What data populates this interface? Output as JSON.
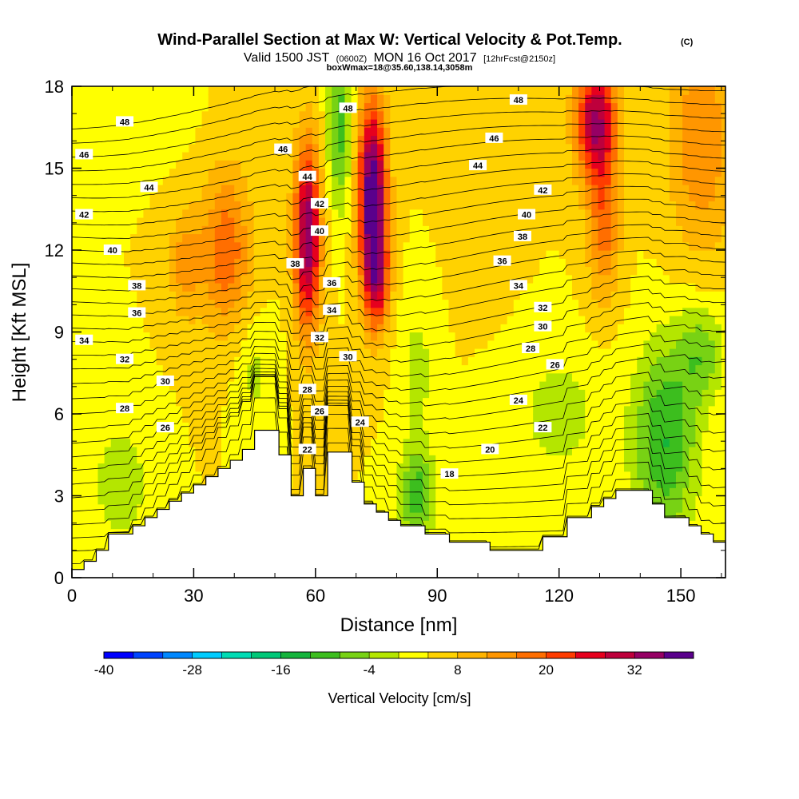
{
  "chart_data": {
    "type": "heatmap",
    "title": "Wind-Parallel Section at Max W: Vertical Velocity & Pot.Temp.",
    "title_mark": "(C)",
    "subtitle": {
      "valid": "Valid 1500 JST",
      "utc": "(0600Z)",
      "date": "MON 16 Oct 2017",
      "fcst": "[12hrFcst@2150z]",
      "box": "boxWmax=18@35.60,138.14,3058m"
    },
    "xlabel": "Distance [nm]",
    "ylabel": "Height [Kft MSL]",
    "xlim": [
      0,
      161
    ],
    "ylim": [
      0,
      18
    ],
    "x_ticks": [
      0,
      30,
      60,
      90,
      120,
      150
    ],
    "y_ticks": [
      0,
      3,
      6,
      9,
      12,
      15,
      18
    ],
    "x_tick_labels": [
      "0",
      "30",
      "60",
      "90",
      "120",
      "150"
    ],
    "y_tick_labels": [
      "0",
      "3",
      "6",
      "9",
      "12",
      "15",
      "18"
    ],
    "colorbar": {
      "title": "Vertical Velocity [cm/s]",
      "min": -40,
      "max": 40,
      "step": 4,
      "labels": [
        "-40",
        "-28",
        "-16",
        "-4",
        "8",
        "20",
        "32"
      ],
      "label_values": [
        -40,
        -28,
        -16,
        -4,
        8,
        20,
        32
      ],
      "colors": [
        "#0000ff",
        "#0044ff",
        "#0088ff",
        "#00ccff",
        "#00dcb4",
        "#00c878",
        "#14b43c",
        "#3cbe1e",
        "#78d214",
        "#b4e600",
        "#ffff00",
        "#ffd200",
        "#ffb400",
        "#ff9600",
        "#ff6e00",
        "#ff3c00",
        "#e6001e",
        "#be003c",
        "#960064",
        "#5a008c"
      ]
    },
    "terrain": [
      [
        0,
        0.3
      ],
      [
        3,
        0.3
      ],
      [
        3,
        0.6
      ],
      [
        6,
        0.6
      ],
      [
        6,
        1.0
      ],
      [
        9,
        1.0
      ],
      [
        9,
        1.6
      ],
      [
        15,
        1.6
      ],
      [
        15,
        1.9
      ],
      [
        18,
        1.9
      ],
      [
        18,
        2.2
      ],
      [
        21,
        2.2
      ],
      [
        21,
        2.5
      ],
      [
        24,
        2.5
      ],
      [
        24,
        2.8
      ],
      [
        27,
        2.8
      ],
      [
        27,
        3.1
      ],
      [
        30,
        3.1
      ],
      [
        30,
        3.4
      ],
      [
        33,
        3.4
      ],
      [
        33,
        3.7
      ],
      [
        36,
        3.7
      ],
      [
        36,
        4.0
      ],
      [
        39,
        4.0
      ],
      [
        39,
        4.3
      ],
      [
        42,
        4.3
      ],
      [
        42,
        4.7
      ],
      [
        45,
        4.7
      ],
      [
        45,
        5.4
      ],
      [
        51,
        5.4
      ],
      [
        51,
        4.5
      ],
      [
        54,
        4.5
      ],
      [
        54,
        3.0
      ],
      [
        57,
        3.0
      ],
      [
        57,
        4.0
      ],
      [
        60,
        4.0
      ],
      [
        60,
        3.0
      ],
      [
        63,
        3.0
      ],
      [
        63,
        4.6
      ],
      [
        69,
        4.6
      ],
      [
        69,
        3.5
      ],
      [
        72,
        3.5
      ],
      [
        72,
        2.7
      ],
      [
        75,
        2.7
      ],
      [
        75,
        2.4
      ],
      [
        78,
        2.4
      ],
      [
        78,
        2.1
      ],
      [
        81,
        2.1
      ],
      [
        81,
        1.9
      ],
      [
        87,
        1.9
      ],
      [
        87,
        1.6
      ],
      [
        93,
        1.6
      ],
      [
        93,
        1.3
      ],
      [
        103,
        1.3
      ],
      [
        103,
        1.0
      ],
      [
        116,
        1.0
      ],
      [
        116,
        1.5
      ],
      [
        122,
        1.5
      ],
      [
        122,
        2.2
      ],
      [
        128,
        2.2
      ],
      [
        128,
        2.6
      ],
      [
        131,
        2.6
      ],
      [
        131,
        2.9
      ],
      [
        134,
        2.9
      ],
      [
        134,
        3.2
      ],
      [
        143,
        3.2
      ],
      [
        143,
        2.7
      ],
      [
        146,
        2.7
      ],
      [
        146,
        2.2
      ],
      [
        152,
        2.2
      ],
      [
        152,
        1.9
      ],
      [
        155,
        1.9
      ],
      [
        155,
        1.6
      ],
      [
        158,
        1.6
      ],
      [
        158,
        1.3
      ],
      [
        161,
        1.3
      ]
    ],
    "velocity_field": {
      "background": 4,
      "features": [
        {
          "x": 58,
          "y": 12.5,
          "sx": 3.2,
          "sy": 3.4,
          "amp": 32
        },
        {
          "x": 74,
          "y": 14.2,
          "sx": 3.5,
          "sy": 3.2,
          "amp": 37
        },
        {
          "x": 75,
          "y": 11.0,
          "sx": 3.0,
          "sy": 2.0,
          "amp": 22
        },
        {
          "x": 129,
          "y": 16.8,
          "sx": 5.0,
          "sy": 2.2,
          "amp": 28
        },
        {
          "x": 131,
          "y": 13.0,
          "sx": 4.0,
          "sy": 2.8,
          "amp": 14
        },
        {
          "x": 38,
          "y": 12.0,
          "sx": 6.0,
          "sy": 3.0,
          "amp": 15
        },
        {
          "x": 28,
          "y": 11.5,
          "sx": 4.0,
          "sy": 2.0,
          "amp": 10
        },
        {
          "x": 155,
          "y": 16.0,
          "sx": 8.0,
          "sy": 4.0,
          "amp": 12
        },
        {
          "x": 102,
          "y": 14.5,
          "sx": 7.0,
          "sy": 3.0,
          "amp": 4
        },
        {
          "x": 66,
          "y": 16.5,
          "sx": 3.0,
          "sy": 3.0,
          "amp": -14
        },
        {
          "x": 85,
          "y": 3.0,
          "sx": 4.5,
          "sy": 1.8,
          "amp": -14
        },
        {
          "x": 146,
          "y": 5.0,
          "sx": 8.0,
          "sy": 3.5,
          "amp": -16
        },
        {
          "x": 155,
          "y": 8.2,
          "sx": 6.0,
          "sy": 1.8,
          "amp": -10
        },
        {
          "x": 12,
          "y": 3.5,
          "sx": 7.0,
          "sy": 2.2,
          "amp": -7
        },
        {
          "x": 85,
          "y": 7.5,
          "sx": 4.0,
          "sy": 2.5,
          "amp": -6
        },
        {
          "x": 120,
          "y": 6.0,
          "sx": 10.0,
          "sy": 2.5,
          "amp": -6
        },
        {
          "x": 45,
          "y": 7.5,
          "sx": 5.0,
          "sy": 2.0,
          "amp": -5
        },
        {
          "x": 20,
          "y": 17.0,
          "sx": 10.0,
          "sy": 1.5,
          "amp": -2
        }
      ]
    },
    "isentrope_count": 33,
    "isentrope_labels": [
      {
        "x": 13,
        "y": 16.7,
        "text": "48"
      },
      {
        "x": 68,
        "y": 17.2,
        "text": "48"
      },
      {
        "x": 110,
        "y": 17.5,
        "text": "48"
      },
      {
        "x": 3,
        "y": 15.5,
        "text": "46"
      },
      {
        "x": 52,
        "y": 15.7,
        "text": "46"
      },
      {
        "x": 104,
        "y": 16.1,
        "text": "46"
      },
      {
        "x": 19,
        "y": 14.3,
        "text": "44"
      },
      {
        "x": 58,
        "y": 14.7,
        "text": "44"
      },
      {
        "x": 100,
        "y": 15.1,
        "text": "44"
      },
      {
        "x": 3,
        "y": 13.3,
        "text": "42"
      },
      {
        "x": 61,
        "y": 13.7,
        "text": "42"
      },
      {
        "x": 116,
        "y": 14.2,
        "text": "42"
      },
      {
        "x": 10,
        "y": 12.0,
        "text": "40"
      },
      {
        "x": 61,
        "y": 12.7,
        "text": "40"
      },
      {
        "x": 112,
        "y": 13.3,
        "text": "40"
      },
      {
        "x": 55,
        "y": 11.5,
        "text": "38"
      },
      {
        "x": 111,
        "y": 12.5,
        "text": "38"
      },
      {
        "x": 16,
        "y": 10.7,
        "text": "38"
      },
      {
        "x": 64,
        "y": 10.8,
        "text": "36"
      },
      {
        "x": 106,
        "y": 11.6,
        "text": "36"
      },
      {
        "x": 16,
        "y": 9.7,
        "text": "36"
      },
      {
        "x": 64,
        "y": 9.8,
        "text": "34"
      },
      {
        "x": 110,
        "y": 10.7,
        "text": "34"
      },
      {
        "x": 3,
        "y": 8.7,
        "text": "34"
      },
      {
        "x": 61,
        "y": 8.8,
        "text": "32"
      },
      {
        "x": 116,
        "y": 9.9,
        "text": "32"
      },
      {
        "x": 13,
        "y": 8.0,
        "text": "32"
      },
      {
        "x": 68,
        "y": 8.1,
        "text": "30"
      },
      {
        "x": 116,
        "y": 9.2,
        "text": "30"
      },
      {
        "x": 23,
        "y": 7.2,
        "text": "30"
      },
      {
        "x": 58,
        "y": 6.9,
        "text": "28"
      },
      {
        "x": 113,
        "y": 8.4,
        "text": "28"
      },
      {
        "x": 13,
        "y": 6.2,
        "text": "28"
      },
      {
        "x": 61,
        "y": 6.1,
        "text": "26"
      },
      {
        "x": 119,
        "y": 7.8,
        "text": "26"
      },
      {
        "x": 23,
        "y": 5.5,
        "text": "26"
      },
      {
        "x": 71,
        "y": 5.7,
        "text": "24"
      },
      {
        "x": 110,
        "y": 6.5,
        "text": "24"
      },
      {
        "x": 58,
        "y": 4.7,
        "text": "22"
      },
      {
        "x": 116,
        "y": 5.5,
        "text": "22"
      },
      {
        "x": 103,
        "y": 4.7,
        "text": "20"
      },
      {
        "x": 93,
        "y": 3.8,
        "text": "18"
      }
    ]
  }
}
